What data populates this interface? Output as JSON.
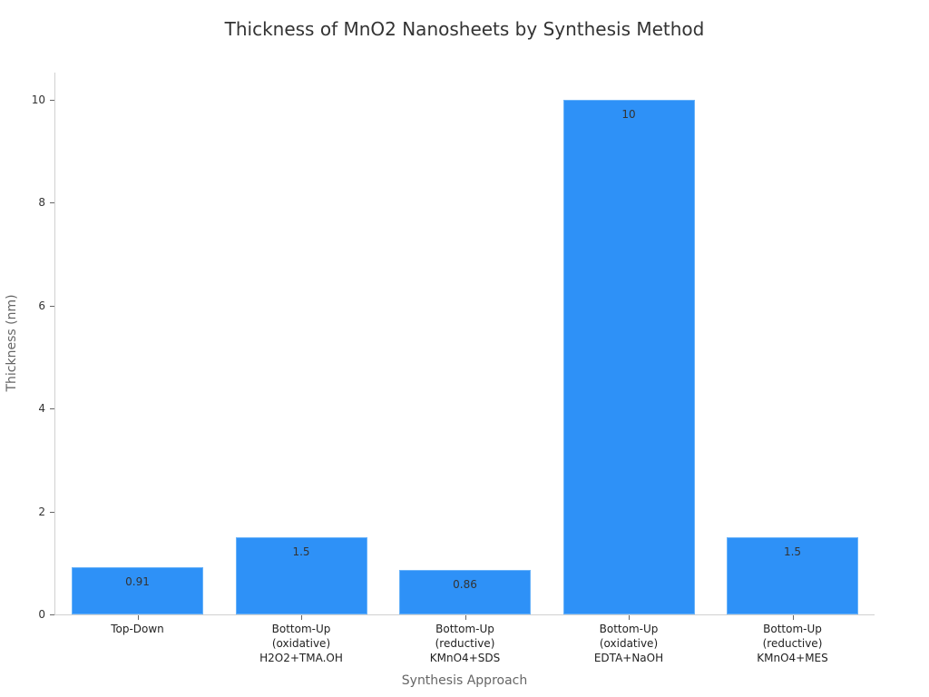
{
  "chart_data": {
    "type": "bar",
    "title": "Thickness of MnO2 Nanosheets by Synthesis Method",
    "xlabel": "Synthesis Approach",
    "ylabel": "Thickness (nm)",
    "categories": [
      "Top-Down",
      "Bottom-Up\n(oxidative)\nH2O2+TMA.OH",
      "Bottom-Up\n(reductive)\nKMnO4+SDS",
      "Bottom-Up\n(oxidative)\nEDTA+NaOH",
      "Bottom-Up\n(reductive)\nKMnO4+MES"
    ],
    "values": [
      0.91,
      1.5,
      0.86,
      10,
      1.5
    ],
    "value_labels": [
      "0.91",
      "1.5",
      "0.86",
      "10",
      "1.5"
    ],
    "ylim": [
      0,
      10.5
    ],
    "yticks": [
      "0",
      "2",
      "4",
      "6",
      "8",
      "10"
    ],
    "grid": false,
    "legend": null,
    "bar_color": "#2e91f7"
  }
}
